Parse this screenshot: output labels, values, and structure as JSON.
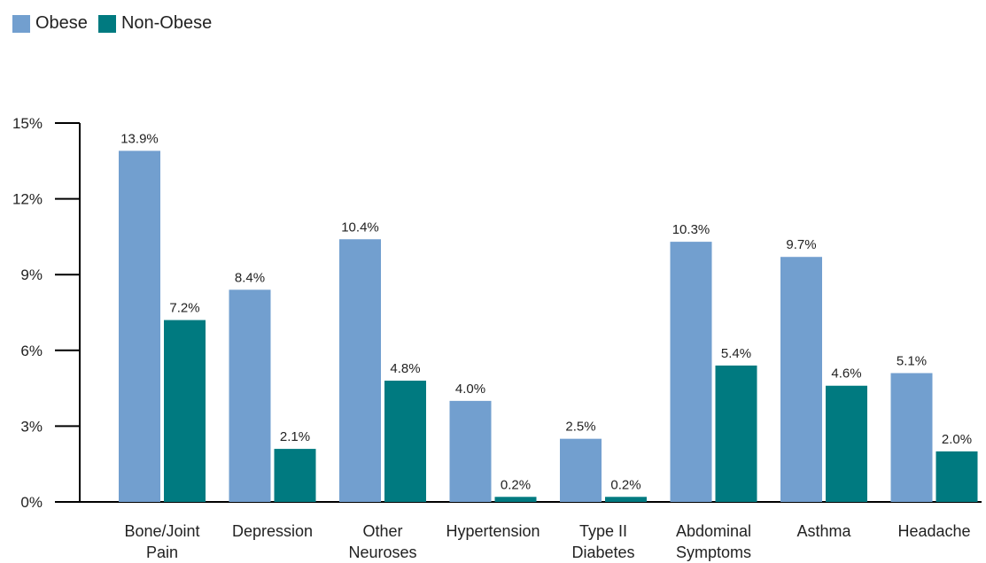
{
  "legend": {
    "items": [
      {
        "label": "Obese",
        "color": "#729fcf"
      },
      {
        "label": "Non-Obese",
        "color": "#007a80"
      }
    ]
  },
  "chart_data": {
    "type": "bar",
    "categories": [
      [
        "Bone/Joint",
        "Pain"
      ],
      [
        "Depression"
      ],
      [
        "Other",
        "Neuroses"
      ],
      [
        "Hypertension"
      ],
      [
        "Type II",
        "Diabetes"
      ],
      [
        "Abdominal",
        "Symptoms"
      ],
      [
        "Asthma"
      ],
      [
        "Headache"
      ]
    ],
    "series": [
      {
        "name": "Obese",
        "color": "#729fcf",
        "values": [
          13.9,
          8.4,
          10.4,
          4.0,
          2.5,
          10.3,
          9.7,
          5.1
        ],
        "labels": [
          "13.9%",
          "8.4%",
          "10.4%",
          "4.0%",
          "2.5%",
          "10.3%",
          "9.7%",
          "5.1%"
        ]
      },
      {
        "name": "Non-Obese",
        "color": "#007a80",
        "values": [
          7.2,
          2.1,
          4.8,
          0.2,
          0.2,
          5.4,
          4.6,
          2.0
        ],
        "labels": [
          "7.2%",
          "2.1%",
          "4.8%",
          "0.2%",
          "0.2%",
          "5.4%",
          "4.6%",
          "2.0%"
        ]
      }
    ],
    "ylim": [
      0,
      15
    ],
    "yticks": [
      0,
      3,
      6,
      9,
      12,
      15
    ],
    "ytick_labels": [
      "0%",
      "3%",
      "6%",
      "9%",
      "12%",
      "15%"
    ],
    "grid": false,
    "legend_position": "top-left"
  }
}
